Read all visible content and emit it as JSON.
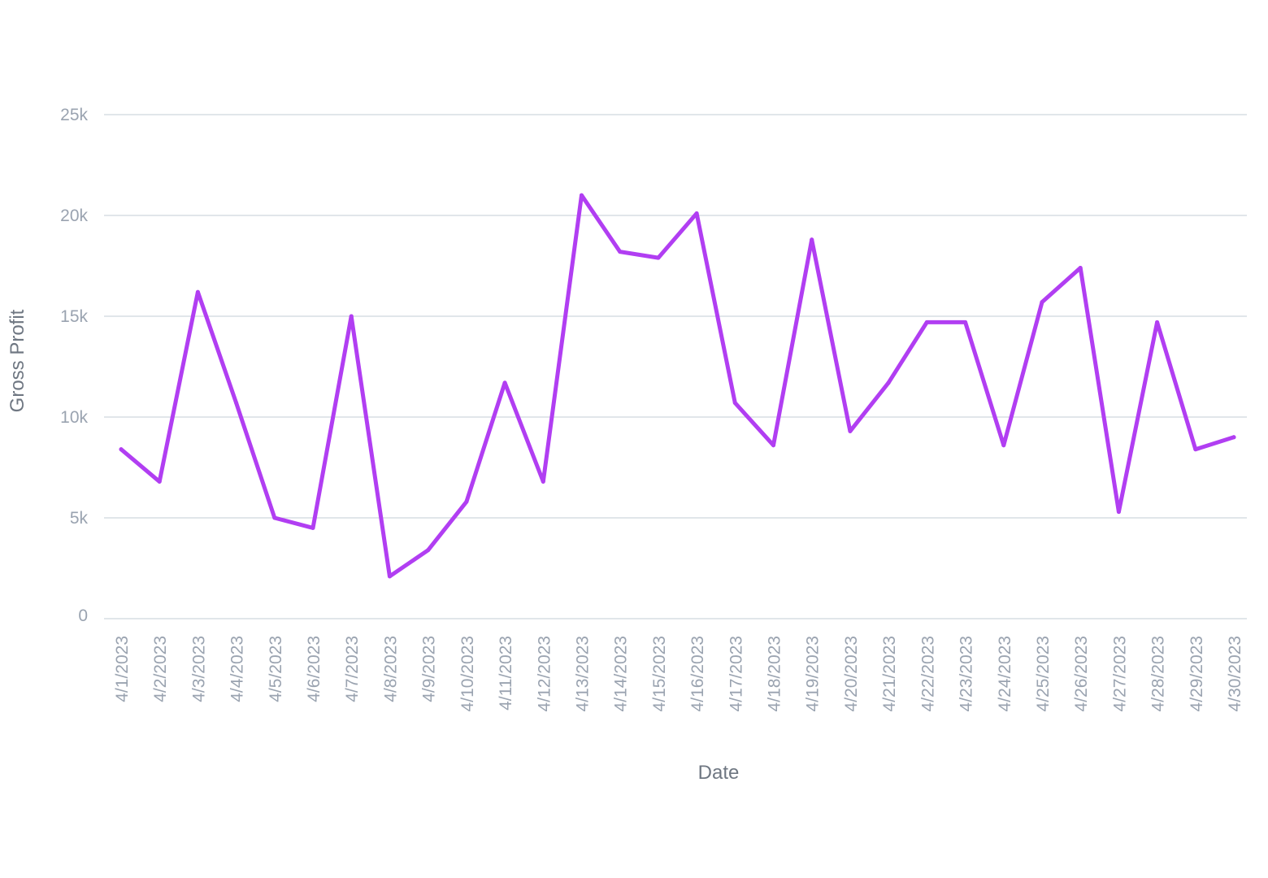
{
  "chart_data": {
    "type": "line",
    "title": "",
    "xlabel": "Date",
    "ylabel": "Gross Profit",
    "ylim": [
      0,
      25000
    ],
    "y_ticks": [
      {
        "value": 0,
        "label": "0"
      },
      {
        "value": 5000,
        "label": "5k"
      },
      {
        "value": 10000,
        "label": "10k"
      },
      {
        "value": 15000,
        "label": "15k"
      },
      {
        "value": 20000,
        "label": "20k"
      },
      {
        "value": 25000,
        "label": "25k"
      }
    ],
    "grid": true,
    "legend": "none",
    "categories": [
      "4/1/2023",
      "4/2/2023",
      "4/3/2023",
      "4/4/2023",
      "4/5/2023",
      "4/6/2023",
      "4/7/2023",
      "4/8/2023",
      "4/9/2023",
      "4/10/2023",
      "4/11/2023",
      "4/12/2023",
      "4/13/2023",
      "4/14/2023",
      "4/15/2023",
      "4/16/2023",
      "4/17/2023",
      "4/18/2023",
      "4/19/2023",
      "4/20/2023",
      "4/21/2023",
      "4/22/2023",
      "4/23/2023",
      "4/24/2023",
      "4/25/2023",
      "4/26/2023",
      "4/27/2023",
      "4/28/2023",
      "4/29/2023",
      "4/30/2023"
    ],
    "series": [
      {
        "color": "#b13ef2",
        "values": [
          8400,
          6800,
          16200,
          10700,
          5000,
          4500,
          15000,
          2100,
          3400,
          5800,
          11700,
          6800,
          21000,
          18200,
          17900,
          20100,
          10700,
          8600,
          18800,
          9300,
          11700,
          14700,
          14700,
          8600,
          15700,
          17400,
          5300,
          14700,
          8400,
          9000
        ]
      }
    ]
  }
}
